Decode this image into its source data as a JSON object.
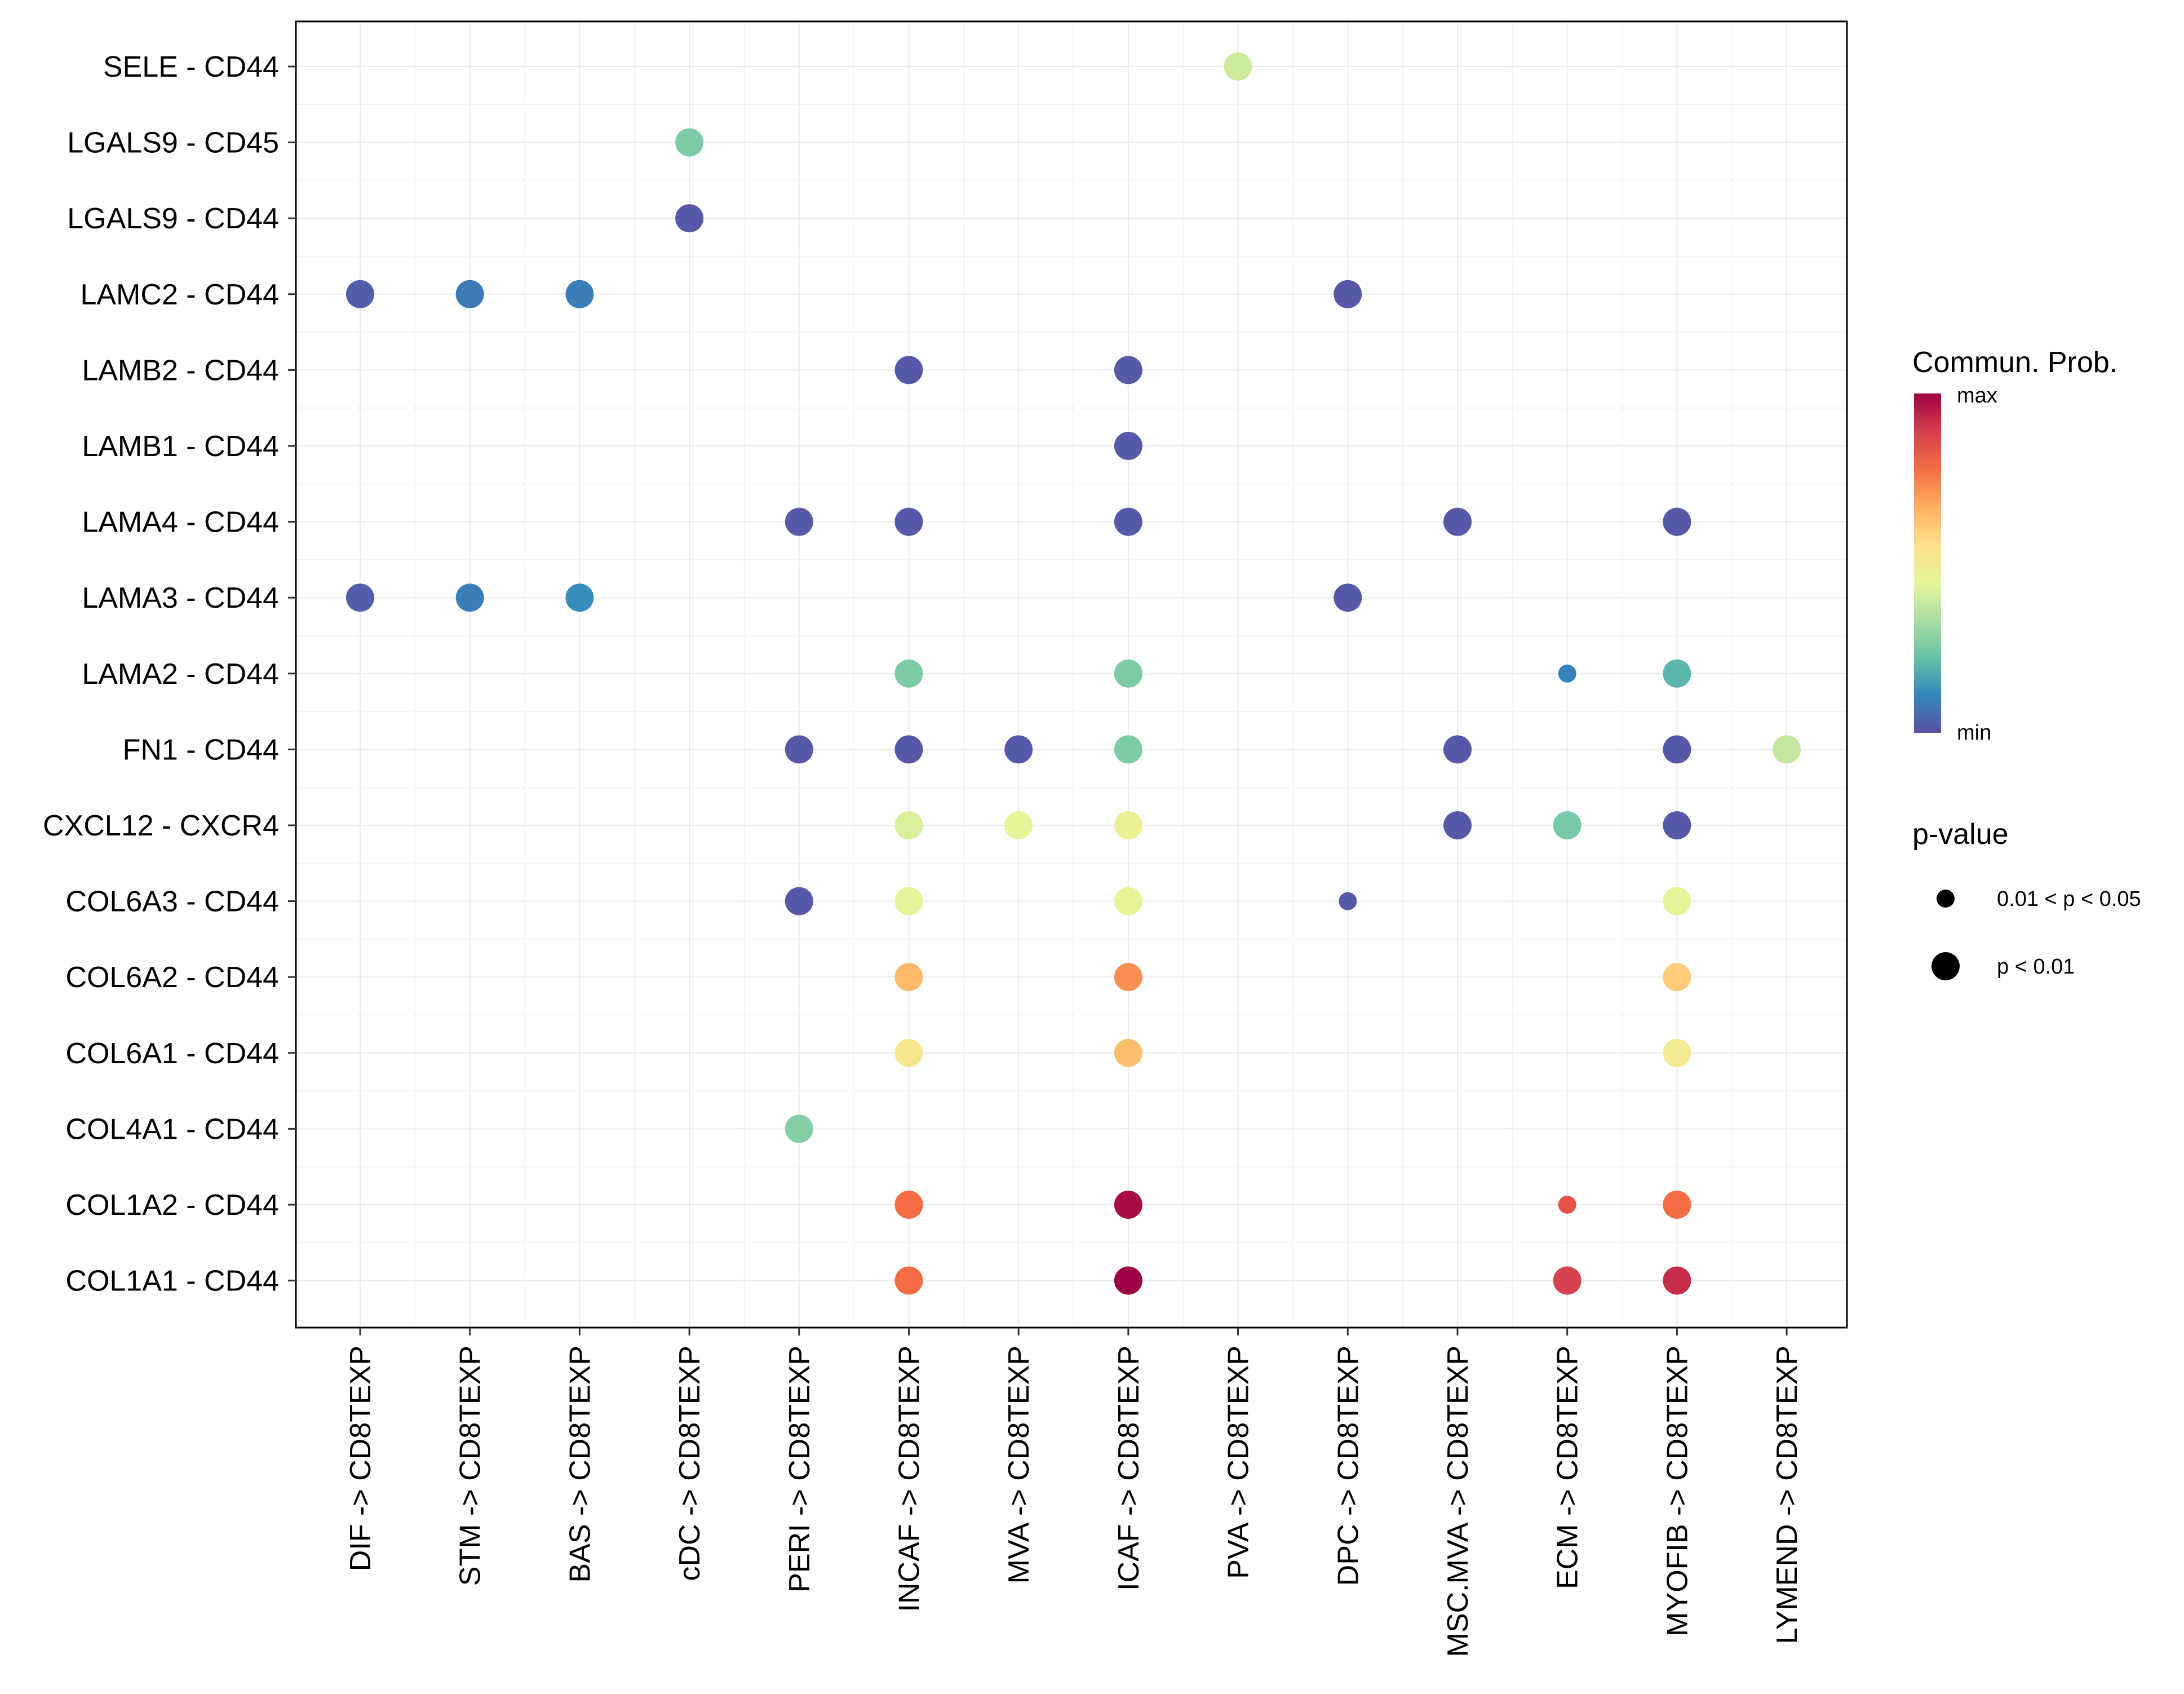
{
  "chart_data": {
    "type": "dotplot",
    "title": "",
    "xlabel": "",
    "ylabel": "",
    "categories_x": [
      "DIF -> CD8TEXP",
      "STM -> CD8TEXP",
      "BAS -> CD8TEXP",
      "cDC -> CD8TEXP",
      "PERI -> CD8TEXP",
      "INCAF -> CD8TEXP",
      "MVA -> CD8TEXP",
      "ICAF -> CD8TEXP",
      "PVA -> CD8TEXP",
      "DPC -> CD8TEXP",
      "MSC.MVA -> CD8TEXP",
      "ECM -> CD8TEXP",
      "MYOFIB -> CD8TEXP",
      "LYMEND -> CD8TEXP"
    ],
    "categories_y": [
      "SELE - CD44",
      "LGALS9 - CD45",
      "LGALS9 - CD44",
      "LAMC2 - CD44",
      "LAMB2 - CD44",
      "LAMB1 - CD44",
      "LAMA4 - CD44",
      "LAMA3 - CD44",
      "LAMA2 - CD44",
      "FN1 - CD44",
      "CXCL12 - CXCR4",
      "COL6A3 - CD44",
      "COL6A2 - CD44",
      "COL6A1 - CD44",
      "COL4A1 - CD44",
      "COL1A2 - CD44",
      "COL1A1 - CD44"
    ],
    "points": [
      {
        "x": "PVA -> CD8TEXP",
        "y": "SELE - CD44",
        "prob": 0.4,
        "p": "p < 0.01"
      },
      {
        "x": "cDC -> CD8TEXP",
        "y": "LGALS9 - CD45",
        "prob": 0.26,
        "p": "p < 0.01"
      },
      {
        "x": "cDC -> CD8TEXP",
        "y": "LGALS9 - CD44",
        "prob": 0.02,
        "p": "p < 0.01"
      },
      {
        "x": "DIF -> CD8TEXP",
        "y": "LAMC2 - CD44",
        "prob": 0.03,
        "p": "p < 0.01"
      },
      {
        "x": "STM -> CD8TEXP",
        "y": "LAMC2 - CD44",
        "prob": 0.08,
        "p": "p < 0.01"
      },
      {
        "x": "BAS -> CD8TEXP",
        "y": "LAMC2 - CD44",
        "prob": 0.09,
        "p": "p < 0.01"
      },
      {
        "x": "DPC -> CD8TEXP",
        "y": "LAMC2 - CD44",
        "prob": 0.02,
        "p": "p < 0.01"
      },
      {
        "x": "INCAF -> CD8TEXP",
        "y": "LAMB2 - CD44",
        "prob": 0.02,
        "p": "p < 0.01"
      },
      {
        "x": "ICAF -> CD8TEXP",
        "y": "LAMB2 - CD44",
        "prob": 0.02,
        "p": "p < 0.01"
      },
      {
        "x": "ICAF -> CD8TEXP",
        "y": "LAMB1 - CD44",
        "prob": 0.02,
        "p": "p < 0.01"
      },
      {
        "x": "PERI -> CD8TEXP",
        "y": "LAMA4 - CD44",
        "prob": 0.02,
        "p": "p < 0.01"
      },
      {
        "x": "INCAF -> CD8TEXP",
        "y": "LAMA4 - CD44",
        "prob": 0.02,
        "p": "p < 0.01"
      },
      {
        "x": "ICAF -> CD8TEXP",
        "y": "LAMA4 - CD44",
        "prob": 0.02,
        "p": "p < 0.01"
      },
      {
        "x": "MSC.MVA -> CD8TEXP",
        "y": "LAMA4 - CD44",
        "prob": 0.02,
        "p": "p < 0.01"
      },
      {
        "x": "MYOFIB -> CD8TEXP",
        "y": "LAMA4 - CD44",
        "prob": 0.02,
        "p": "p < 0.01"
      },
      {
        "x": "DIF -> CD8TEXP",
        "y": "LAMA3 - CD44",
        "prob": 0.03,
        "p": "p < 0.01"
      },
      {
        "x": "STM -> CD8TEXP",
        "y": "LAMA3 - CD44",
        "prob": 0.09,
        "p": "p < 0.01"
      },
      {
        "x": "BAS -> CD8TEXP",
        "y": "LAMA3 - CD44",
        "prob": 0.12,
        "p": "p < 0.01"
      },
      {
        "x": "DPC -> CD8TEXP",
        "y": "LAMA3 - CD44",
        "prob": 0.02,
        "p": "p < 0.01"
      },
      {
        "x": "INCAF -> CD8TEXP",
        "y": "LAMA2 - CD44",
        "prob": 0.26,
        "p": "p < 0.01"
      },
      {
        "x": "ICAF -> CD8TEXP",
        "y": "LAMA2 - CD44",
        "prob": 0.26,
        "p": "p < 0.01"
      },
      {
        "x": "ECM -> CD8TEXP",
        "y": "LAMA2 - CD44",
        "prob": 0.1,
        "p": "0.01 < p < 0.05"
      },
      {
        "x": "MYOFIB -> CD8TEXP",
        "y": "LAMA2 - CD44",
        "prob": 0.2,
        "p": "p < 0.01"
      },
      {
        "x": "PERI -> CD8TEXP",
        "y": "FN1 - CD44",
        "prob": 0.02,
        "p": "p < 0.01"
      },
      {
        "x": "INCAF -> CD8TEXP",
        "y": "FN1 - CD44",
        "prob": 0.02,
        "p": "p < 0.01"
      },
      {
        "x": "MVA -> CD8TEXP",
        "y": "FN1 - CD44",
        "prob": 0.02,
        "p": "p < 0.01"
      },
      {
        "x": "ICAF -> CD8TEXP",
        "y": "FN1 - CD44",
        "prob": 0.26,
        "p": "p < 0.01"
      },
      {
        "x": "MSC.MVA -> CD8TEXP",
        "y": "FN1 - CD44",
        "prob": 0.02,
        "p": "p < 0.01"
      },
      {
        "x": "MYOFIB -> CD8TEXP",
        "y": "FN1 - CD44",
        "prob": 0.02,
        "p": "p < 0.01"
      },
      {
        "x": "LYMEND -> CD8TEXP",
        "y": "FN1 - CD44",
        "prob": 0.38,
        "p": "p < 0.01"
      },
      {
        "x": "INCAF -> CD8TEXP",
        "y": "CXCL12 - CXCR4",
        "prob": 0.42,
        "p": "p < 0.01"
      },
      {
        "x": "MVA -> CD8TEXP",
        "y": "CXCL12 - CXCR4",
        "prob": 0.45,
        "p": "p < 0.01"
      },
      {
        "x": "ICAF -> CD8TEXP",
        "y": "CXCL12 - CXCR4",
        "prob": 0.47,
        "p": "p < 0.01"
      },
      {
        "x": "MSC.MVA -> CD8TEXP",
        "y": "CXCL12 - CXCR4",
        "prob": 0.02,
        "p": "p < 0.01"
      },
      {
        "x": "ECM -> CD8TEXP",
        "y": "CXCL12 - CXCR4",
        "prob": 0.25,
        "p": "p < 0.01"
      },
      {
        "x": "MYOFIB -> CD8TEXP",
        "y": "CXCL12 - CXCR4",
        "prob": 0.02,
        "p": "p < 0.01"
      },
      {
        "x": "PERI -> CD8TEXP",
        "y": "COL6A3 - CD44",
        "prob": 0.02,
        "p": "p < 0.01"
      },
      {
        "x": "INCAF -> CD8TEXP",
        "y": "COL6A3 - CD44",
        "prob": 0.44,
        "p": "p < 0.01"
      },
      {
        "x": "ICAF -> CD8TEXP",
        "y": "COL6A3 - CD44",
        "prob": 0.46,
        "p": "p < 0.01"
      },
      {
        "x": "DPC -> CD8TEXP",
        "y": "COL6A3 - CD44",
        "prob": 0.02,
        "p": "0.01 < p < 0.05"
      },
      {
        "x": "MYOFIB -> CD8TEXP",
        "y": "COL6A3 - CD44",
        "prob": 0.44,
        "p": "p < 0.01"
      },
      {
        "x": "INCAF -> CD8TEXP",
        "y": "COL6A2 - CD44",
        "prob": 0.64,
        "p": "p < 0.01"
      },
      {
        "x": "ICAF -> CD8TEXP",
        "y": "COL6A2 - CD44",
        "prob": 0.72,
        "p": "p < 0.01"
      },
      {
        "x": "MYOFIB -> CD8TEXP",
        "y": "COL6A2 - CD44",
        "prob": 0.6,
        "p": "p < 0.01"
      },
      {
        "x": "INCAF -> CD8TEXP",
        "y": "COL6A1 - CD44",
        "prob": 0.52,
        "p": "p < 0.01"
      },
      {
        "x": "ICAF -> CD8TEXP",
        "y": "COL6A1 - CD44",
        "prob": 0.63,
        "p": "p < 0.01"
      },
      {
        "x": "MYOFIB -> CD8TEXP",
        "y": "COL6A1 - CD44",
        "prob": 0.5,
        "p": "p < 0.01"
      },
      {
        "x": "PERI -> CD8TEXP",
        "y": "COL4A1 - CD44",
        "prob": 0.27,
        "p": "p < 0.01"
      },
      {
        "x": "INCAF -> CD8TEXP",
        "y": "COL1A2 - CD44",
        "prob": 0.78,
        "p": "p < 0.01"
      },
      {
        "x": "ICAF -> CD8TEXP",
        "y": "COL1A2 - CD44",
        "prob": 0.98,
        "p": "p < 0.01"
      },
      {
        "x": "ECM -> CD8TEXP",
        "y": "COL1A2 - CD44",
        "prob": 0.84,
        "p": "0.01 < p < 0.05"
      },
      {
        "x": "MYOFIB -> CD8TEXP",
        "y": "COL1A2 - CD44",
        "prob": 0.78,
        "p": "p < 0.01"
      },
      {
        "x": "INCAF -> CD8TEXP",
        "y": "COL1A1 - CD44",
        "prob": 0.78,
        "p": "p < 0.01"
      },
      {
        "x": "ICAF -> CD8TEXP",
        "y": "COL1A1 - CD44",
        "prob": 1.0,
        "p": "p < 0.01"
      },
      {
        "x": "ECM -> CD8TEXP",
        "y": "COL1A1 - CD44",
        "prob": 0.88,
        "p": "p < 0.01"
      },
      {
        "x": "MYOFIB -> CD8TEXP",
        "y": "COL1A1 - CD44",
        "prob": 0.92,
        "p": "p < 0.01"
      }
    ],
    "color_scale": {
      "name": "Spectral (reversed)",
      "stops": [
        "#5e4fa2",
        "#3288bd",
        "#66c2a5",
        "#abdda4",
        "#e6f598",
        "#fee08b",
        "#fdae61",
        "#f46d43",
        "#d53e4f",
        "#9e0142"
      ]
    },
    "legend": {
      "color_title": "Commun. Prob.",
      "color_max_label": "max",
      "color_min_label": "min",
      "size_title": "p-value",
      "size_entries": [
        "0.01 < p < 0.05",
        "p < 0.01"
      ],
      "placement": "right"
    },
    "grid": true
  }
}
